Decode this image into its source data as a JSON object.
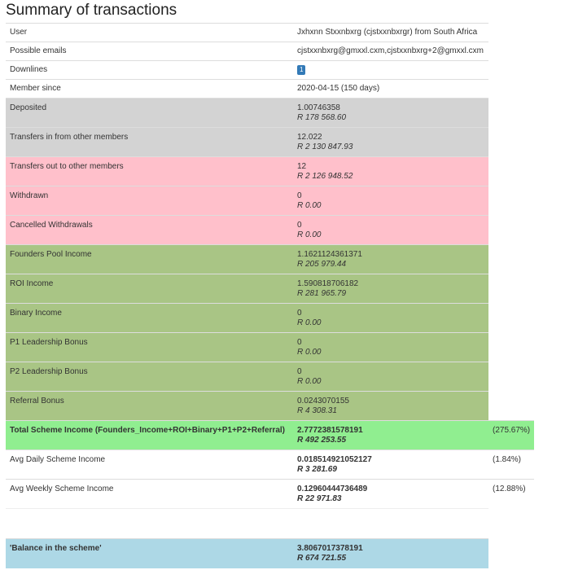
{
  "title": "Summary of transactions",
  "table": {
    "rows": [
      {
        "label": "User",
        "value": "Jxhxnn Stxxnbxrg (cjstxxnbxrgr) from South Africa"
      },
      {
        "label": "Possible emails",
        "value": "cjstxxnbxrg@gmxxl.cxm,cjstxxnbxrg+2@gmxxl.cxm"
      },
      {
        "label": "Downlines",
        "value": "1"
      },
      {
        "label": "Member since",
        "value": "2020-04-15 (150 days)"
      },
      {
        "label": "Deposited",
        "value": "1.00746358",
        "amount": "R 178 568.60"
      },
      {
        "label": "Transfers in from other members",
        "value": "12.022",
        "amount": "R 2 130 847.93"
      },
      {
        "label": "Transfers out to other members",
        "value": "12",
        "amount": "R 2 126 948.52"
      },
      {
        "label": "Withdrawn",
        "value": "0",
        "amount": "R 0.00"
      },
      {
        "label": "Cancelled Withdrawals",
        "value": "0",
        "amount": "R 0.00"
      },
      {
        "label": "Founders Pool Income",
        "value": "1.1621124361371",
        "amount": "R 205 979.44"
      },
      {
        "label": "ROI Income",
        "value": "1.590818706182",
        "amount": "R 281 965.79"
      },
      {
        "label": "Binary Income",
        "value": "0",
        "amount": "R 0.00"
      },
      {
        "label": "P1 Leadership Bonus",
        "value": "0",
        "amount": "R 0.00"
      },
      {
        "label": "P2 Leadership Bonus",
        "value": "0",
        "amount": "R 0.00"
      },
      {
        "label": "Referral Bonus",
        "value": "0.0243070155",
        "amount": "R 4 308.31"
      },
      {
        "label": "Total Scheme Income (Founders_Income+ROI+Binary+P1+P2+Referral)",
        "value": "2.7772381578191",
        "amount": "R 492 253.55",
        "percent": "(275.67%)"
      },
      {
        "label": "Avg Daily Scheme Income",
        "value": "0.018514921052127",
        "amount": "R 3 281.69",
        "percent": "(1.84%)"
      },
      {
        "label": "Avg Weekly Scheme Income",
        "value": "0.12960444736489",
        "amount": "R 22 971.83",
        "percent": "(12.88%)"
      },
      {
        "label": "'Balance in the scheme'",
        "value": "3.8067017378191",
        "amount": "R 674 721.55"
      }
    ]
  }
}
